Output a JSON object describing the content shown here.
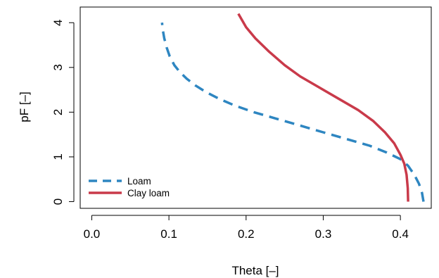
{
  "chart_data": {
    "type": "line",
    "title": "",
    "xlabel": "Theta [–]",
    "ylabel": "pF [–]",
    "xlim": [
      -0.015,
      0.44
    ],
    "ylim": [
      -0.15,
      4.35
    ],
    "xticks": [
      0.0,
      0.1,
      0.2,
      0.3,
      0.4
    ],
    "xtick_labels": [
      "0.0",
      "0.1",
      "0.2",
      "0.3",
      "0.4"
    ],
    "yticks": [
      0,
      1,
      2,
      3,
      4
    ],
    "ytick_labels": [
      "0",
      "1",
      "2",
      "3",
      "4"
    ],
    "grid": false,
    "legend_position": "bottom-left",
    "series": [
      {
        "name": "Loam",
        "color": "#2E86C1",
        "style": "dashed",
        "points": [
          [
            0.43,
            0.0
          ],
          [
            0.428,
            0.2
          ],
          [
            0.424,
            0.4
          ],
          [
            0.418,
            0.6
          ],
          [
            0.41,
            0.8
          ],
          [
            0.4,
            0.95
          ],
          [
            0.382,
            1.1
          ],
          [
            0.36,
            1.25
          ],
          [
            0.33,
            1.4
          ],
          [
            0.3,
            1.55
          ],
          [
            0.27,
            1.7
          ],
          [
            0.24,
            1.85
          ],
          [
            0.21,
            2.0
          ],
          [
            0.185,
            2.15
          ],
          [
            0.165,
            2.3
          ],
          [
            0.148,
            2.45
          ],
          [
            0.134,
            2.6
          ],
          [
            0.123,
            2.75
          ],
          [
            0.114,
            2.9
          ],
          [
            0.107,
            3.05
          ],
          [
            0.101,
            3.25
          ],
          [
            0.097,
            3.45
          ],
          [
            0.094,
            3.65
          ],
          [
            0.092,
            3.85
          ],
          [
            0.091,
            4.0
          ]
        ]
      },
      {
        "name": "Clay loam",
        "color": "#C93A4A",
        "style": "solid",
        "points": [
          [
            0.41,
            0.0
          ],
          [
            0.4095,
            0.3
          ],
          [
            0.408,
            0.6
          ],
          [
            0.405,
            0.85
          ],
          [
            0.4,
            1.05
          ],
          [
            0.392,
            1.3
          ],
          [
            0.38,
            1.55
          ],
          [
            0.365,
            1.8
          ],
          [
            0.345,
            2.05
          ],
          [
            0.32,
            2.3
          ],
          [
            0.295,
            2.55
          ],
          [
            0.27,
            2.8
          ],
          [
            0.25,
            3.05
          ],
          [
            0.23,
            3.35
          ],
          [
            0.212,
            3.65
          ],
          [
            0.2,
            3.9
          ],
          [
            0.19,
            4.2
          ]
        ]
      }
    ]
  }
}
